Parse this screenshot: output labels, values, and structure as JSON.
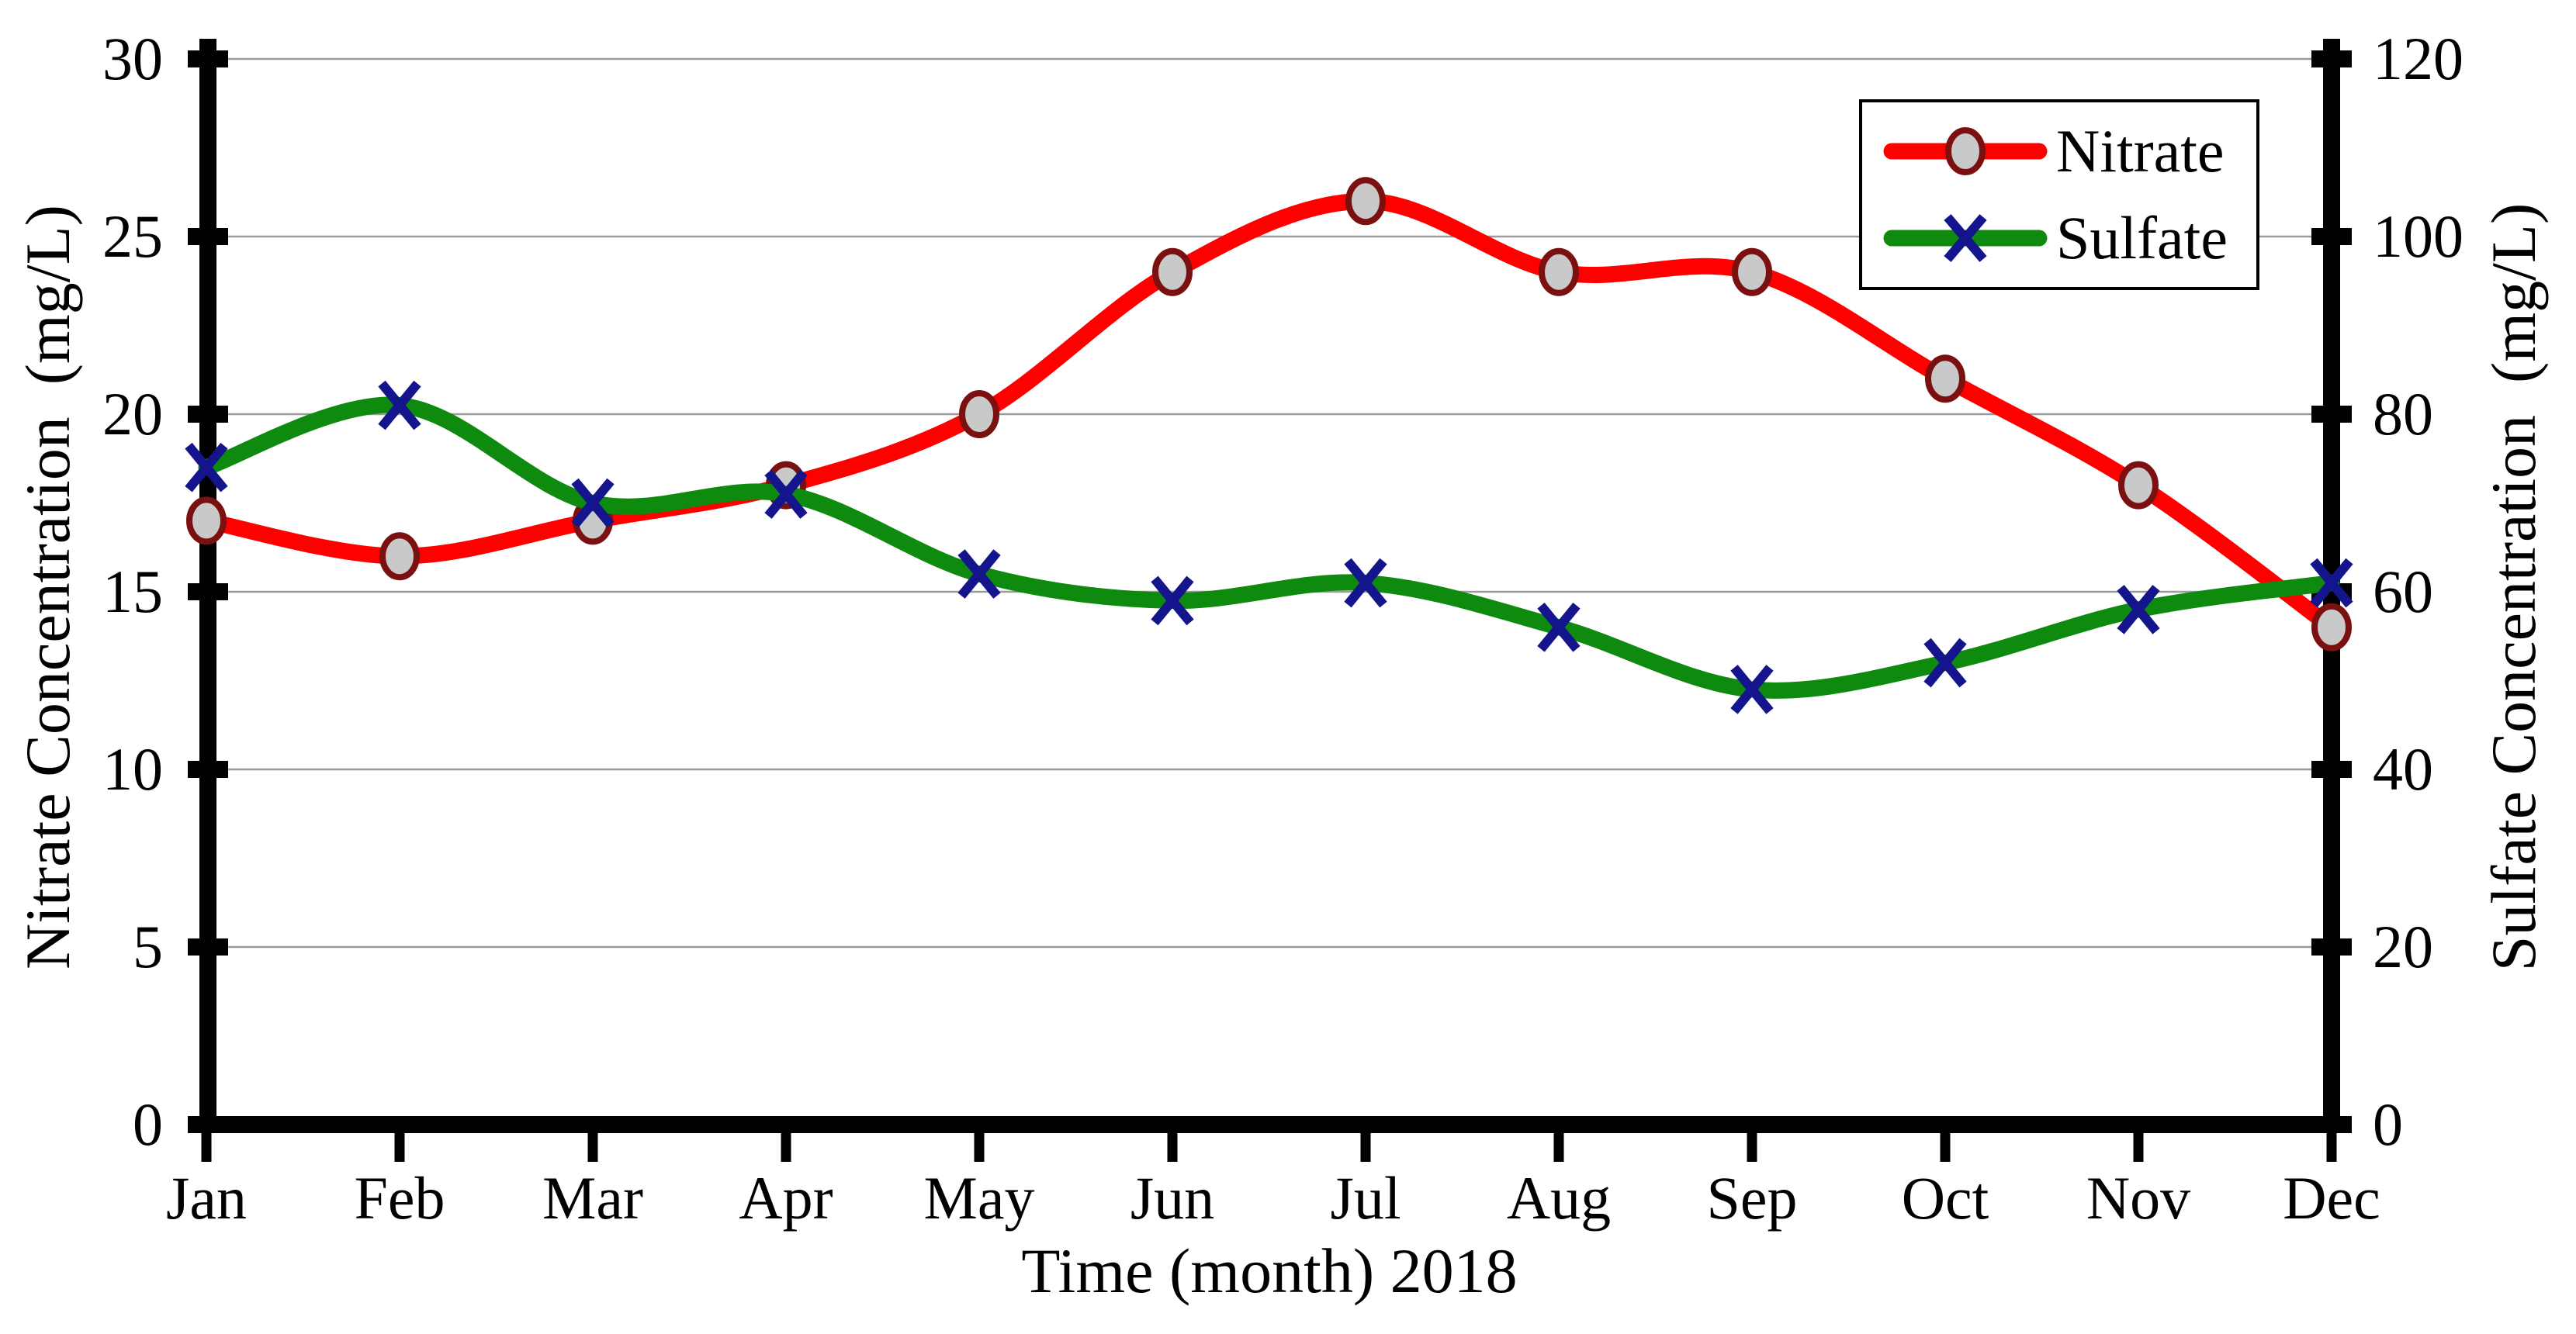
{
  "chart_data": {
    "type": "line",
    "title": "",
    "categories": [
      "Jan",
      "Feb",
      "Mar",
      "Apr",
      "May",
      "Jun",
      "Jul",
      "Aug",
      "Sep",
      "Oct",
      "Nov",
      "Dec"
    ],
    "series": [
      {
        "name": "Nitrate",
        "axis": "left",
        "values": [
          17,
          16,
          17,
          18,
          20,
          24,
          26,
          24,
          24,
          21,
          18,
          14
        ],
        "color": "#ff0000",
        "marker": "circle",
        "marker_fill": "#c9c9c9",
        "marker_stroke": "#7a1010"
      },
      {
        "name": "Sulfate",
        "axis": "right",
        "values": [
          74,
          81,
          70,
          71,
          62,
          59,
          61,
          56,
          49,
          52,
          58,
          61
        ],
        "color": "#0e8a0e",
        "marker": "x",
        "marker_stroke": "#14148c"
      }
    ],
    "x_axis": {
      "title": "Time (month) 2018"
    },
    "left_axis": {
      "title": "Nitrate Concentration  (mg/L)",
      "min": 0,
      "max": 30,
      "step": 5,
      "tick_labels": [
        "30",
        "25",
        "20",
        "15",
        "10",
        "5",
        "0"
      ]
    },
    "right_axis": {
      "title": "Sulfate Concentration  (mg/L)",
      "min": 0,
      "max": 120,
      "step": 20,
      "tick_labels": [
        "120",
        "100",
        "80",
        "60",
        "40",
        "20",
        "0"
      ]
    },
    "grid": true,
    "smooth_lines": true,
    "legend_position": "top-right",
    "colors": {
      "gridline": "#9b9b9b",
      "axis": "#000000",
      "background": "#ffffff",
      "text": "#000000"
    }
  },
  "legend": {
    "items": [
      {
        "label": "Nitrate"
      },
      {
        "label": "Sulfate"
      }
    ]
  }
}
